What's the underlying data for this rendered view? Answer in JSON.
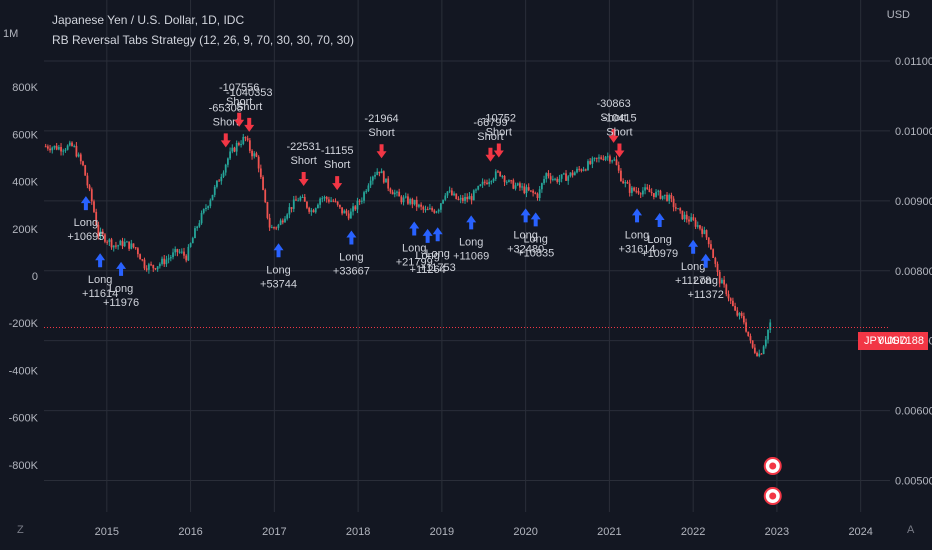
{
  "legend": {
    "symbol": "Japanese Yen / U.S. Dollar, 1D, IDC",
    "strategy": "RB Reversal Tabs Strategy (12, 26, 9, 70, 30, 30, 70, 30)"
  },
  "top_left_label": "1M",
  "currency_label": "USD",
  "price_tag": {
    "symbol": "JPYUSD",
    "value": "0.007188"
  },
  "bottom_left_icon": "Z",
  "bottom_right_icon": "A",
  "colors": {
    "background": "#131722",
    "grid": "#2a2e39",
    "text": "#b2b5be",
    "up": "#26a69a",
    "down": "#ef5350",
    "long_arrow": "#2962ff",
    "short_arrow": "#f23645",
    "price_line": "#f23645"
  },
  "chart_data": {
    "type": "line",
    "title": "Japanese Yen / U.S. Dollar, 1D, IDC",
    "y_right_ticks": [
      "0.011000",
      "0.010000",
      "0.009000",
      "0.008000",
      "0.007000",
      "0.006000",
      "0.005000"
    ],
    "y_right_range": [
      0.00455,
      0.0113
    ],
    "y_left_ticks": [
      "800K",
      "600K",
      "400K",
      "200K",
      "0",
      "-200K",
      "-400K",
      "-600K",
      "-800K"
    ],
    "y_left_range": [
      -1000000,
      1000000
    ],
    "x_ticks": [
      "2015",
      "2016",
      "2017",
      "2018",
      "2019",
      "2020",
      "2021",
      "2022",
      "2023",
      "2024"
    ],
    "x_range": [
      2014.25,
      2024.35
    ],
    "price_series": [
      [
        2014.27,
        0.00978
      ],
      [
        2014.45,
        0.00976
      ],
      [
        2014.6,
        0.00978
      ],
      [
        2014.67,
        0.0096
      ],
      [
        2014.72,
        0.00948
      ],
      [
        2014.77,
        0.00922
      ],
      [
        2014.83,
        0.00895
      ],
      [
        2014.9,
        0.00852
      ],
      [
        2014.97,
        0.00848
      ],
      [
        2015.1,
        0.00835
      ],
      [
        2015.2,
        0.0084
      ],
      [
        2015.35,
        0.00832
      ],
      [
        2015.45,
        0.00808
      ],
      [
        2015.55,
        0.00805
      ],
      [
        2015.7,
        0.00815
      ],
      [
        2015.85,
        0.00828
      ],
      [
        2015.95,
        0.0082
      ],
      [
        2016.08,
        0.00865
      ],
      [
        2016.2,
        0.00895
      ],
      [
        2016.3,
        0.0092
      ],
      [
        2016.45,
        0.00962
      ],
      [
        2016.55,
        0.0098
      ],
      [
        2016.65,
        0.0099
      ],
      [
        2016.72,
        0.0097
      ],
      [
        2016.8,
        0.0096
      ],
      [
        2016.88,
        0.009
      ],
      [
        2016.95,
        0.0086
      ],
      [
        2017.05,
        0.00865
      ],
      [
        2017.15,
        0.00885
      ],
      [
        2017.3,
        0.00905
      ],
      [
        2017.45,
        0.00885
      ],
      [
        2017.55,
        0.00905
      ],
      [
        2017.7,
        0.009
      ],
      [
        2017.8,
        0.00885
      ],
      [
        2017.9,
        0.0088
      ],
      [
        2018.05,
        0.00905
      ],
      [
        2018.15,
        0.00935
      ],
      [
        2018.25,
        0.00945
      ],
      [
        2018.35,
        0.00922
      ],
      [
        2018.5,
        0.00903
      ],
      [
        2018.65,
        0.00898
      ],
      [
        2018.8,
        0.00885
      ],
      [
        2018.95,
        0.00888
      ],
      [
        2019.05,
        0.00915
      ],
      [
        2019.2,
        0.009
      ],
      [
        2019.35,
        0.00905
      ],
      [
        2019.5,
        0.00925
      ],
      [
        2019.6,
        0.00935
      ],
      [
        2019.7,
        0.0094
      ],
      [
        2019.8,
        0.00925
      ],
      [
        2019.95,
        0.00918
      ],
      [
        2020.05,
        0.00912
      ],
      [
        2020.15,
        0.00908
      ],
      [
        2020.2,
        0.00925
      ],
      [
        2020.25,
        0.0094
      ],
      [
        2020.35,
        0.0093
      ],
      [
        2020.5,
        0.00935
      ],
      [
        2020.65,
        0.00945
      ],
      [
        2020.8,
        0.00955
      ],
      [
        2020.95,
        0.00965
      ],
      [
        2021.05,
        0.0096
      ],
      [
        2021.15,
        0.0093
      ],
      [
        2021.25,
        0.00915
      ],
      [
        2021.4,
        0.00915
      ],
      [
        2021.55,
        0.0091
      ],
      [
        2021.7,
        0.00905
      ],
      [
        2021.85,
        0.0088
      ],
      [
        2022.0,
        0.0087
      ],
      [
        2022.1,
        0.0086
      ],
      [
        2022.2,
        0.0084
      ],
      [
        2022.3,
        0.0079
      ],
      [
        2022.4,
        0.0077
      ],
      [
        2022.5,
        0.0074
      ],
      [
        2022.6,
        0.0073
      ],
      [
        2022.7,
        0.0069
      ],
      [
        2022.8,
        0.0068
      ],
      [
        2022.88,
        0.0071
      ],
      [
        2022.92,
        0.00725
      ]
    ],
    "current_price": 0.007188,
    "signals": [
      {
        "type": "Long",
        "x": 2014.75,
        "value": "+10695"
      },
      {
        "type": "Long",
        "x": 2014.92,
        "value": "+11614"
      },
      {
        "type": "Long",
        "x": 2015.17,
        "value": "+11976"
      },
      {
        "type": "Short",
        "x": 2016.42,
        "value": "-65305"
      },
      {
        "type": "Short",
        "x": 2016.58,
        "value": "-107556"
      },
      {
        "type": "Short",
        "x": 2016.7,
        "value": "-1040353"
      },
      {
        "type": "Long",
        "x": 2017.05,
        "value": "+53744"
      },
      {
        "type": "Short",
        "x": 2017.35,
        "value": "-22531"
      },
      {
        "type": "Short",
        "x": 2017.75,
        "value": "-11155"
      },
      {
        "type": "Long",
        "x": 2017.92,
        "value": "+33667"
      },
      {
        "type": "Short",
        "x": 2018.28,
        "value": "-21964"
      },
      {
        "type": "Long",
        "x": 2018.67,
        "value": "+21799"
      },
      {
        "type": "Long",
        "x": 2018.83,
        "value": "+11264"
      },
      {
        "type": "Long",
        "x": 2018.95,
        "value": "+11753"
      },
      {
        "type": "Long",
        "x": 2019.35,
        "value": "+11069"
      },
      {
        "type": "Short",
        "x": 2019.58,
        "value": "-66799"
      },
      {
        "type": "Short",
        "x": 2019.68,
        "value": "-10752"
      },
      {
        "type": "Long",
        "x": 2020.0,
        "value": "+32480"
      },
      {
        "type": "Long",
        "x": 2020.12,
        "value": "+10835"
      },
      {
        "type": "Short",
        "x": 2021.05,
        "value": "-30863"
      },
      {
        "type": "Short",
        "x": 2021.12,
        "value": "-10415"
      },
      {
        "type": "Long",
        "x": 2021.33,
        "value": "+31614"
      },
      {
        "type": "Long",
        "x": 2021.6,
        "value": "+10979"
      },
      {
        "type": "Long",
        "x": 2022.0,
        "value": "+11278"
      },
      {
        "type": "Long",
        "x": 2022.15,
        "value": "+11372"
      }
    ]
  }
}
